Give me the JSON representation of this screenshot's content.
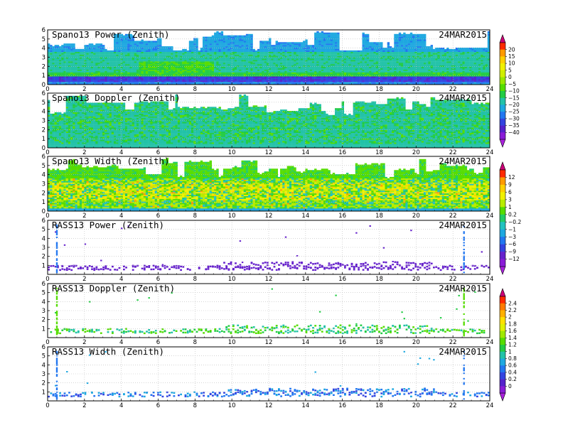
{
  "chart_data": [
    {
      "type": "heatmap",
      "title": "Spano13 Power (Zenith)",
      "date_label": "24MAR2015",
      "xlim": [
        0,
        24
      ],
      "ylim": [
        0,
        6
      ],
      "xticks": [
        0,
        2,
        4,
        6,
        8,
        10,
        12,
        14,
        16,
        18,
        20,
        22,
        24
      ],
      "yticks": [
        0,
        1,
        2,
        3,
        4,
        5,
        6
      ],
      "grid": true,
      "colorbar": "A",
      "pattern": "profile",
      "kind": "power",
      "layers": [
        {
          "height_range": [
            0,
            1.0
          ],
          "dominant_value": -30
        },
        {
          "height_range": [
            1.0,
            3.8
          ],
          "dominant_value": -15
        },
        {
          "height_range": [
            3.8,
            5.8
          ],
          "dominant_value": -22
        }
      ],
      "top_height_range": [
        3.6,
        5.8
      ]
    },
    {
      "type": "heatmap",
      "title": "Spano13 Doppler (Zenith)",
      "date_label": "24MAR2015",
      "xlim": [
        0,
        24
      ],
      "ylim": [
        0,
        6
      ],
      "xticks": [
        0,
        2,
        4,
        6,
        8,
        10,
        12,
        14,
        16,
        18,
        20,
        22,
        24
      ],
      "yticks": [
        0,
        1,
        2,
        3,
        4,
        5,
        6
      ],
      "grid": true,
      "colorbar": "A",
      "pattern": "profile",
      "kind": "doppler",
      "dominant_value": -15,
      "top_height_range": [
        3.6,
        5.8
      ]
    },
    {
      "type": "heatmap",
      "title": "Spano13 Width (Zenith)",
      "date_label": "24MAR2015",
      "xlim": [
        0,
        24
      ],
      "ylim": [
        0,
        6
      ],
      "xticks": [
        0,
        2,
        4,
        6,
        8,
        10,
        12,
        14,
        16,
        18,
        20,
        22,
        24
      ],
      "yticks": [
        0,
        1,
        2,
        3,
        4,
        5,
        6
      ],
      "grid": true,
      "colorbar": "B",
      "pattern": "profile",
      "kind": "width",
      "dominant_value": 1,
      "top_height_range": [
        3.6,
        5.8
      ]
    },
    {
      "type": "heatmap",
      "title": "RASS13 Power (Zenith)",
      "date_label": "24MAR2015",
      "xlim": [
        0,
        24
      ],
      "ylim": [
        0,
        6
      ],
      "xticks": [
        0,
        2,
        4,
        6,
        8,
        10,
        12,
        14,
        16,
        18,
        20,
        22,
        24
      ],
      "yticks": [
        1,
        2,
        3,
        4,
        5,
        6
      ],
      "grid": true,
      "colorbar": "B",
      "pattern": "rass",
      "kind": "power",
      "band_height_range": [
        0.45,
        0.95
      ],
      "vertical_streaks_hours": [
        0.5,
        22.6
      ],
      "dominant_value": -10
    },
    {
      "type": "heatmap",
      "title": "RASS13 Doppler (Zenith)",
      "date_label": "24MAR2015",
      "xlim": [
        0,
        24
      ],
      "ylim": [
        0,
        6
      ],
      "xticks": [
        0,
        2,
        4,
        6,
        8,
        10,
        12,
        14,
        16,
        18,
        20,
        22,
        24
      ],
      "yticks": [
        1,
        2,
        3,
        4,
        5,
        6
      ],
      "grid": true,
      "colorbar": "C",
      "pattern": "rass",
      "kind": "doppler",
      "band_height_range": [
        0.45,
        0.95
      ],
      "vertical_streaks_hours": [
        0.5,
        22.6
      ],
      "dominant_value": 1.2
    },
    {
      "type": "heatmap",
      "title": "RASS13 Width (Zenith)",
      "date_label": "24MAR2015",
      "xlim": [
        0,
        24
      ],
      "ylim": [
        0,
        6
      ],
      "xticks": [
        0,
        2,
        4,
        6,
        8,
        10,
        12,
        14,
        16,
        18,
        20,
        22,
        24
      ],
      "yticks": [
        1,
        2,
        3,
        4,
        5,
        6
      ],
      "grid": true,
      "colorbar": "C",
      "pattern": "rass",
      "kind": "width",
      "band_height_range": [
        0.45,
        0.95
      ],
      "vertical_streaks_hours": [
        0.5,
        22.6
      ],
      "dominant_value": 0.4
    }
  ],
  "colorbars": [
    {
      "id": "A",
      "labels": [
        "20",
        "15",
        "10",
        "5",
        "0",
        "−5",
        "−10",
        "−15",
        "−20",
        "−25",
        "−30",
        "−35",
        "−40"
      ],
      "colors": [
        "#ff2a00",
        "#ff9a00",
        "#ffd000",
        "#f0f000",
        "#d0ee00",
        "#9ae800",
        "#55dd00",
        "#22cc44",
        "#22c2a8",
        "#1ea8e0",
        "#2277f0",
        "#3344e0",
        "#5522cc",
        "#8a1cd8"
      ],
      "top_arrow_color": "#cc0077",
      "bottom_arrow_color": "#aa22dd"
    },
    {
      "id": "B",
      "labels": [
        "12",
        "9",
        "6",
        "3",
        "1",
        "0.2",
        "−0.2",
        "−1",
        "−3",
        "−6",
        "−9",
        "−12"
      ],
      "colors": [
        "#ff2a00",
        "#ff9a00",
        "#ffd000",
        "#f0f000",
        "#b8ec00",
        "#55dd00",
        "#22cc66",
        "#22c2c0",
        "#1ea8e0",
        "#2277f0",
        "#3344e0",
        "#6622cc",
        "#8a1cd8"
      ],
      "top_arrow_color": "#cc0077",
      "bottom_arrow_color": "#aa22dd"
    },
    {
      "id": "C",
      "labels": [
        "2.4",
        "2.2",
        "2",
        "1.8",
        "1.6",
        "1.4",
        "1.2",
        "1",
        "0.8",
        "0.6",
        "0.4",
        "0.2",
        "0"
      ],
      "colors": [
        "#ff2a00",
        "#ff7a00",
        "#ffb000",
        "#ffe000",
        "#e0f000",
        "#a0e800",
        "#55dd00",
        "#22cc44",
        "#22c2a8",
        "#1ea8e0",
        "#2277f0",
        "#3344e0",
        "#5522cc",
        "#8a1cd8"
      ],
      "top_arrow_color": "#cc0077",
      "bottom_arrow_color": "#aa22dd"
    }
  ]
}
